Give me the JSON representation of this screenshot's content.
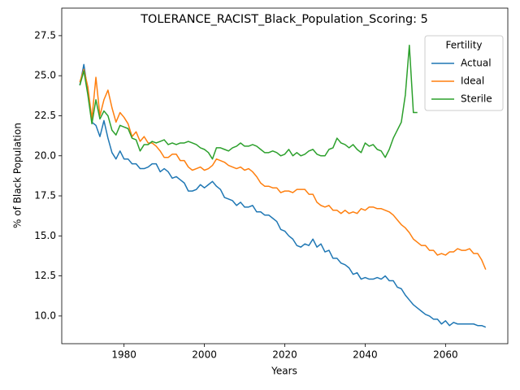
{
  "chart_data": {
    "type": "line",
    "title": "TOLERANCE_RACIST_Black_Population_Scoring: 5",
    "xlabel": "Years",
    "ylabel": "% of Black Population",
    "legend_title": "Fertility",
    "legend": "upper right",
    "grid": false,
    "xlim": [
      1964.5,
      2075.5
    ],
    "ylim": [
      8.27,
      29.22
    ],
    "xticks": [
      1980,
      2000,
      2020,
      2040,
      2060
    ],
    "yticks": [
      {
        "value": 10.0,
        "label": "10.0"
      },
      12.5,
      {
        "value": 15.0,
        "label": "15.0"
      },
      17.5,
      {
        "value": 20.0,
        "label": "20.0"
      },
      22.5,
      {
        "value": 25.0,
        "label": "25.0"
      },
      27.5
    ],
    "x": [
      1969,
      1970,
      1971,
      1972,
      1973,
      1974,
      1975,
      1976,
      1977,
      1978,
      1979,
      1980,
      1981,
      1982,
      1983,
      1984,
      1985,
      1986,
      1987,
      1988,
      1989,
      1990,
      1991,
      1992,
      1993,
      1994,
      1995,
      1996,
      1997,
      1998,
      1999,
      2000,
      2001,
      2002,
      2003,
      2004,
      2005,
      2006,
      2007,
      2008,
      2009,
      2010,
      2011,
      2012,
      2013,
      2014,
      2015,
      2016,
      2017,
      2018,
      2019,
      2020,
      2021,
      2022,
      2023,
      2024,
      2025,
      2026,
      2027,
      2028,
      2029,
      2030,
      2031,
      2032,
      2033,
      2034,
      2035,
      2036,
      2037,
      2038,
      2039,
      2040,
      2041,
      2042,
      2043,
      2044,
      2045,
      2046,
      2047,
      2048,
      2049,
      2050,
      2051,
      2052,
      2053,
      2054,
      2055,
      2056,
      2057,
      2058,
      2059,
      2060,
      2061,
      2062,
      2063,
      2064,
      2065,
      2066,
      2067,
      2068,
      2069,
      2070
    ],
    "series": [
      {
        "name": "Actual",
        "color": "#1f77b4",
        "values": [
          24.4,
          25.7,
          24.0,
          22.1,
          21.9,
          21.2,
          22.2,
          21.1,
          20.2,
          19.8,
          20.3,
          19.8,
          19.8,
          19.5,
          19.5,
          19.2,
          19.2,
          19.3,
          19.5,
          19.5,
          19.0,
          19.2,
          19.0,
          18.6,
          18.7,
          18.5,
          18.3,
          17.8,
          17.8,
          17.9,
          18.2,
          18.0,
          18.2,
          18.4,
          18.1,
          17.9,
          17.4,
          17.3,
          17.2,
          16.9,
          17.1,
          16.8,
          16.8,
          16.9,
          16.5,
          16.5,
          16.3,
          16.3,
          16.1,
          15.9,
          15.4,
          15.3,
          15.0,
          14.8,
          14.4,
          14.3,
          14.5,
          14.4,
          14.8,
          14.3,
          14.5,
          14.0,
          14.1,
          13.6,
          13.6,
          13.3,
          13.2,
          13.0,
          12.6,
          12.7,
          12.3,
          12.4,
          12.3,
          12.3,
          12.4,
          12.3,
          12.5,
          12.2,
          12.2,
          11.8,
          11.7,
          11.3,
          11.0,
          10.7,
          10.5,
          10.3,
          10.1,
          10.0,
          9.8,
          9.8,
          9.5,
          9.7,
          9.4,
          9.6,
          9.5,
          9.5,
          9.5,
          9.5,
          9.5,
          9.4,
          9.4,
          9.3
        ]
      },
      {
        "name": "Ideal",
        "color": "#ff7f0e",
        "values": [
          24.6,
          25.4,
          24.3,
          22.3,
          24.9,
          22.5,
          23.5,
          24.1,
          23.0,
          22.1,
          22.7,
          22.4,
          22.0,
          21.2,
          21.5,
          20.9,
          21.2,
          20.8,
          20.8,
          20.6,
          20.3,
          19.9,
          19.9,
          20.1,
          20.1,
          19.7,
          19.7,
          19.3,
          19.1,
          19.2,
          19.3,
          19.1,
          19.2,
          19.4,
          19.8,
          19.7,
          19.6,
          19.4,
          19.3,
          19.2,
          19.3,
          19.1,
          19.2,
          19.0,
          18.7,
          18.3,
          18.1,
          18.1,
          18.0,
          18.0,
          17.7,
          17.8,
          17.8,
          17.7,
          17.9,
          17.9,
          17.9,
          17.6,
          17.6,
          17.1,
          16.9,
          16.8,
          16.9,
          16.6,
          16.6,
          16.4,
          16.6,
          16.4,
          16.5,
          16.4,
          16.7,
          16.6,
          16.8,
          16.8,
          16.7,
          16.7,
          16.6,
          16.5,
          16.3,
          16.0,
          15.7,
          15.5,
          15.2,
          14.8,
          14.6,
          14.4,
          14.4,
          14.1,
          14.1,
          13.8,
          13.9,
          13.8,
          14.0,
          14.0,
          14.2,
          14.1,
          14.1,
          14.2,
          13.9,
          13.9,
          13.5,
          12.9
        ]
      },
      {
        "name": "Sterile",
        "color": "#2ca02c",
        "values": [
          24.4,
          25.3,
          23.8,
          22.0,
          23.5,
          22.3,
          22.8,
          22.5,
          21.6,
          21.3,
          21.9,
          21.8,
          21.7,
          21.1,
          21.0,
          20.3,
          20.7,
          20.7,
          20.9,
          20.8,
          20.9,
          21.0,
          20.7,
          20.8,
          20.7,
          20.8,
          20.8,
          20.9,
          20.8,
          20.7,
          20.5,
          20.4,
          20.2,
          19.8,
          20.5,
          20.5,
          20.4,
          20.3,
          20.5,
          20.6,
          20.8,
          20.6,
          20.6,
          20.7,
          20.6,
          20.4,
          20.2,
          20.2,
          20.3,
          20.2,
          20.0,
          20.1,
          20.4,
          20.0,
          20.2,
          20.0,
          20.1,
          20.3,
          20.4,
          20.1,
          20.0,
          20.0,
          20.4,
          20.5,
          21.1,
          20.8,
          20.7,
          20.5,
          20.7,
          20.4,
          20.2,
          20.8,
          20.6,
          20.7,
          20.4,
          20.3,
          19.9,
          20.4,
          21.1,
          21.6,
          22.1,
          23.8,
          26.9,
          22.7,
          22.7,
          null,
          null,
          null,
          null,
          null,
          null,
          null,
          null,
          null,
          null,
          null,
          null,
          null,
          null,
          null,
          null,
          null
        ]
      }
    ]
  }
}
